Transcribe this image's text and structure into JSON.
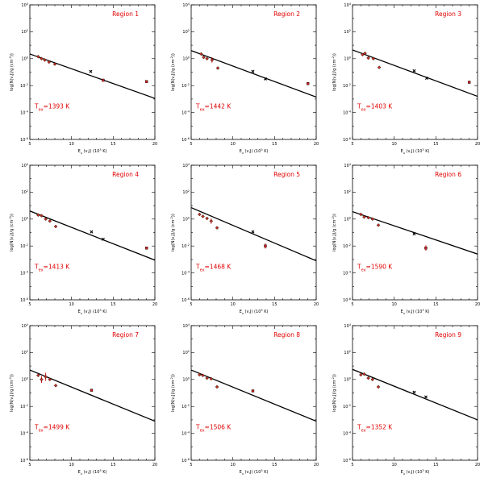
{
  "chart_data": [
    {
      "type": "scatter",
      "title": "Region 1",
      "trot_prefix": "T",
      "trot_sub": "ex",
      "trot_value": "=1393 K",
      "xlabel": "E_u (v,J) (10^3 K)",
      "ylabel": "log(N(v,J)/g (cm^-2))",
      "xlim": [
        5,
        20
      ],
      "ylim": [
        -6,
        4
      ],
      "xticks": [
        "5",
        "10",
        "15",
        "20"
      ],
      "yticks": [
        "10^-6",
        "10^-4",
        "10^-2",
        "10^0",
        "10^2",
        "10^4"
      ],
      "fit": {
        "x": [
          5,
          20
        ],
        "y": [
          0.35,
          -2.95
        ]
      },
      "points": [
        {
          "x": 6.0,
          "y": 0.15,
          "m": "d"
        },
        {
          "x": 6.4,
          "y": 0.0,
          "m": "d"
        },
        {
          "x": 6.8,
          "y": -0.1,
          "m": "d"
        },
        {
          "x": 7.3,
          "y": -0.25,
          "m": "d"
        },
        {
          "x": 8.0,
          "y": -0.4,
          "m": "d"
        },
        {
          "x": 12.3,
          "y": -0.95,
          "m": "x"
        },
        {
          "x": 13.8,
          "y": -1.6,
          "m": "s",
          "e": 0.1
        },
        {
          "x": 19.0,
          "y": -1.7,
          "m": "s",
          "e": 0.1
        }
      ]
    },
    {
      "type": "scatter",
      "title": "Region 2",
      "trot_prefix": "T",
      "trot_sub": "ex",
      "trot_value": "=1442 K",
      "xlabel": "E_u (v,J) (10^3 K)",
      "ylabel": "log(N(v,J)/g (cm^-2))",
      "xlim": [
        5,
        20
      ],
      "ylim": [
        -6,
        4
      ],
      "xticks": [
        "5",
        "10",
        "15",
        "20"
      ],
      "yticks": [
        "10^-6",
        "10^-4",
        "10^-2",
        "10^0",
        "10^2",
        "10^4"
      ],
      "fit": {
        "x": [
          5,
          20
        ],
        "y": [
          0.6,
          -2.85
        ]
      },
      "points": [
        {
          "x": 6.2,
          "y": 0.35,
          "m": "d"
        },
        {
          "x": 6.5,
          "y": 0.1,
          "m": "d"
        },
        {
          "x": 6.9,
          "y": 0.0,
          "m": "d"
        },
        {
          "x": 7.5,
          "y": -0.1,
          "m": "d",
          "e": 0.2
        },
        {
          "x": 8.2,
          "y": -0.7,
          "m": "d"
        },
        {
          "x": 12.4,
          "y": -0.95,
          "m": "x"
        },
        {
          "x": 13.9,
          "y": -1.5,
          "m": "x"
        },
        {
          "x": 19.0,
          "y": -1.85,
          "m": "s",
          "e": 0.1
        }
      ]
    },
    {
      "type": "scatter",
      "title": "Region 3",
      "trot_prefix": "T",
      "trot_sub": "ex",
      "trot_value": "=1403 K",
      "xlabel": "E_u (v,J) (10^3 K)",
      "ylabel": "log(N(v,J)/g (cm^-2))",
      "xlim": [
        5,
        20
      ],
      "ylim": [
        -6,
        4
      ],
      "xticks": [
        "5",
        "10",
        "15",
        "20"
      ],
      "yticks": [
        "10^-6",
        "10^-4",
        "10^-2",
        "10^0",
        "10^2",
        "10^4"
      ],
      "fit": {
        "x": [
          5,
          20
        ],
        "y": [
          0.65,
          -2.8
        ]
      },
      "points": [
        {
          "x": 6.2,
          "y": 0.3,
          "m": "d"
        },
        {
          "x": 6.5,
          "y": 0.4,
          "m": "d"
        },
        {
          "x": 6.9,
          "y": 0.05,
          "m": "d"
        },
        {
          "x": 7.5,
          "y": 0.0,
          "m": "d"
        },
        {
          "x": 8.2,
          "y": -0.65,
          "m": "d"
        },
        {
          "x": 12.4,
          "y": -0.9,
          "m": "x"
        },
        {
          "x": 13.9,
          "y": -1.45,
          "m": "x"
        },
        {
          "x": 19.0,
          "y": -1.75,
          "m": "s",
          "e": 0.1
        }
      ]
    },
    {
      "type": "scatter",
      "title": "Region 4",
      "trot_prefix": "T",
      "trot_sub": "ex",
      "trot_value": "=1413 K",
      "xlabel": "E_u (v,J) (10^3 K)",
      "ylabel": "log(N(v,J)/g (cm^-2))",
      "xlim": [
        5,
        20
      ],
      "ylim": [
        -6,
        4
      ],
      "xticks": [
        "5",
        "10",
        "15",
        "20"
      ],
      "yticks": [
        "10^-6",
        "10^-4",
        "10^-2",
        "10^0",
        "10^2",
        "10^4"
      ],
      "fit": {
        "x": [
          5,
          20
        ],
        "y": [
          0.6,
          -3.05
        ]
      },
      "points": [
        {
          "x": 6.0,
          "y": 0.3,
          "m": "d"
        },
        {
          "x": 6.4,
          "y": 0.25,
          "m": "d"
        },
        {
          "x": 6.9,
          "y": 0.0,
          "m": "d"
        },
        {
          "x": 7.4,
          "y": -0.15,
          "m": "d"
        },
        {
          "x": 8.1,
          "y": -0.55,
          "m": "d"
        },
        {
          "x": 12.4,
          "y": -0.95,
          "m": "x"
        },
        {
          "x": 13.8,
          "y": -1.5,
          "m": "x"
        },
        {
          "x": 19.0,
          "y": -2.15,
          "m": "s",
          "e": 0.1
        }
      ]
    },
    {
      "type": "scatter",
      "title": "Region 5",
      "trot_prefix": "T",
      "trot_sub": "ex",
      "trot_value": "=1468 K",
      "xlabel": "E_u (v,J) (10^3 K)",
      "ylabel": "log(N(v,J)/g (cm^-2))",
      "xlim": [
        5,
        20
      ],
      "ylim": [
        -6,
        4
      ],
      "xticks": [
        "5",
        "10",
        "15",
        "20"
      ],
      "yticks": [
        "10^-6",
        "10^-4",
        "10^-2",
        "10^0",
        "10^2",
        "10^4"
      ],
      "fit": {
        "x": [
          5,
          20
        ],
        "y": [
          0.85,
          -3.1
        ]
      },
      "points": [
        {
          "x": 6.0,
          "y": 0.35,
          "m": "d"
        },
        {
          "x": 6.4,
          "y": 0.2,
          "m": "d"
        },
        {
          "x": 6.9,
          "y": 0.05,
          "m": "d"
        },
        {
          "x": 7.4,
          "y": -0.15,
          "m": "d",
          "e": 0.2
        },
        {
          "x": 8.1,
          "y": -0.65,
          "m": "d"
        },
        {
          "x": 12.4,
          "y": -0.95,
          "m": "x"
        },
        {
          "x": 13.9,
          "y": -2.0,
          "m": "s",
          "e": 0.2
        }
      ]
    },
    {
      "type": "scatter",
      "title": "Region 6",
      "trot_prefix": "T",
      "trot_sub": "ex",
      "trot_value": "=1590 K",
      "xlabel": "E_u (v,J) (10^3 K)",
      "ylabel": "log(N(v,J)/g (cm^-2))",
      "xlim": [
        5,
        20
      ],
      "ylim": [
        -6,
        4
      ],
      "xticks": [
        "5",
        "10",
        "15",
        "20"
      ],
      "yticks": [
        "10^-6",
        "10^-4",
        "10^-2",
        "10^0",
        "10^2",
        "10^4"
      ],
      "fit": {
        "x": [
          5,
          20
        ],
        "y": [
          0.55,
          -2.6
        ]
      },
      "points": [
        {
          "x": 6.0,
          "y": 0.35,
          "m": "d"
        },
        {
          "x": 6.4,
          "y": 0.15,
          "m": "d"
        },
        {
          "x": 6.9,
          "y": 0.1,
          "m": "d"
        },
        {
          "x": 7.4,
          "y": 0.0,
          "m": "d"
        },
        {
          "x": 8.1,
          "y": -0.45,
          "m": "d"
        },
        {
          "x": 12.4,
          "y": -1.1,
          "m": "x"
        },
        {
          "x": 13.8,
          "y": -2.15,
          "m": "s",
          "e": 0.2
        }
      ]
    },
    {
      "type": "scatter",
      "title": "Region 7",
      "trot_prefix": "T",
      "trot_sub": "ex",
      "trot_value": "=1499 K",
      "xlabel": "E_u (v,J) (10^3 K)",
      "ylabel": "log(N(v,J)/g (cm^-2))",
      "xlim": [
        5,
        20
      ],
      "ylim": [
        -6,
        4
      ],
      "xticks": [
        "5",
        "10",
        "15",
        "20"
      ],
      "yticks": [
        "10^-6",
        "10^-4",
        "10^-2",
        "10^0",
        "10^2",
        "10^4"
      ],
      "fit": {
        "x": [
          5,
          20
        ],
        "y": [
          0.7,
          -3.1
        ]
      },
      "points": [
        {
          "x": 6.0,
          "y": 0.3,
          "m": "d"
        },
        {
          "x": 6.4,
          "y": 0.0,
          "m": "d",
          "e": 0.25
        },
        {
          "x": 6.9,
          "y": 0.2,
          "m": "d",
          "e": 0.3
        },
        {
          "x": 7.4,
          "y": 0.0,
          "m": "d"
        },
        {
          "x": 8.1,
          "y": -0.45,
          "m": "d"
        },
        {
          "x": 12.4,
          "y": -0.8,
          "m": "s"
        }
      ]
    },
    {
      "type": "scatter",
      "title": "Region 8",
      "trot_prefix": "T",
      "trot_sub": "ex",
      "trot_value": "=1506 K",
      "xlabel": "E_u (v,J) (10^3 K)",
      "ylabel": "log(N(v,J)/g (cm^-2))",
      "xlim": [
        5,
        20
      ],
      "ylim": [
        -6,
        4
      ],
      "xticks": [
        "5",
        "10",
        "15",
        "20"
      ],
      "yticks": [
        "10^-6",
        "10^-4",
        "10^-2",
        "10^0",
        "10^2",
        "10^4"
      ],
      "fit": {
        "x": [
          5,
          20
        ],
        "y": [
          0.7,
          -3.1
        ]
      },
      "points": [
        {
          "x": 6.0,
          "y": 0.35,
          "m": "d"
        },
        {
          "x": 6.4,
          "y": 0.3,
          "m": "d"
        },
        {
          "x": 6.9,
          "y": 0.1,
          "m": "d"
        },
        {
          "x": 7.4,
          "y": 0.05,
          "m": "d"
        },
        {
          "x": 8.1,
          "y": -0.55,
          "m": "d"
        },
        {
          "x": 12.4,
          "y": -0.85,
          "m": "s"
        }
      ]
    },
    {
      "type": "scatter",
      "title": "Region 9",
      "trot_prefix": "T",
      "trot_sub": "ex",
      "trot_value": "=1352 K",
      "xlabel": "E_u (v,J) (10^3 K)",
      "ylabel": "log(N(v,J)/g (cm^-2))",
      "xlim": [
        5,
        20
      ],
      "ylim": [
        -6,
        4
      ],
      "xticks": [
        "5",
        "10",
        "15",
        "20"
      ],
      "yticks": [
        "10^-6",
        "10^-4",
        "10^-2",
        "10^0",
        "10^2",
        "10^4"
      ],
      "fit": {
        "x": [
          5,
          20
        ],
        "y": [
          0.75,
          -3.0
        ]
      },
      "points": [
        {
          "x": 6.0,
          "y": 0.35,
          "m": "d"
        },
        {
          "x": 6.4,
          "y": 0.4,
          "m": "d"
        },
        {
          "x": 6.9,
          "y": 0.1,
          "m": "d"
        },
        {
          "x": 7.4,
          "y": 0.0,
          "m": "d"
        },
        {
          "x": 8.1,
          "y": -0.55,
          "m": "d"
        },
        {
          "x": 12.4,
          "y": -0.95,
          "m": "x"
        },
        {
          "x": 13.8,
          "y": -1.3,
          "m": "x"
        }
      ]
    }
  ]
}
